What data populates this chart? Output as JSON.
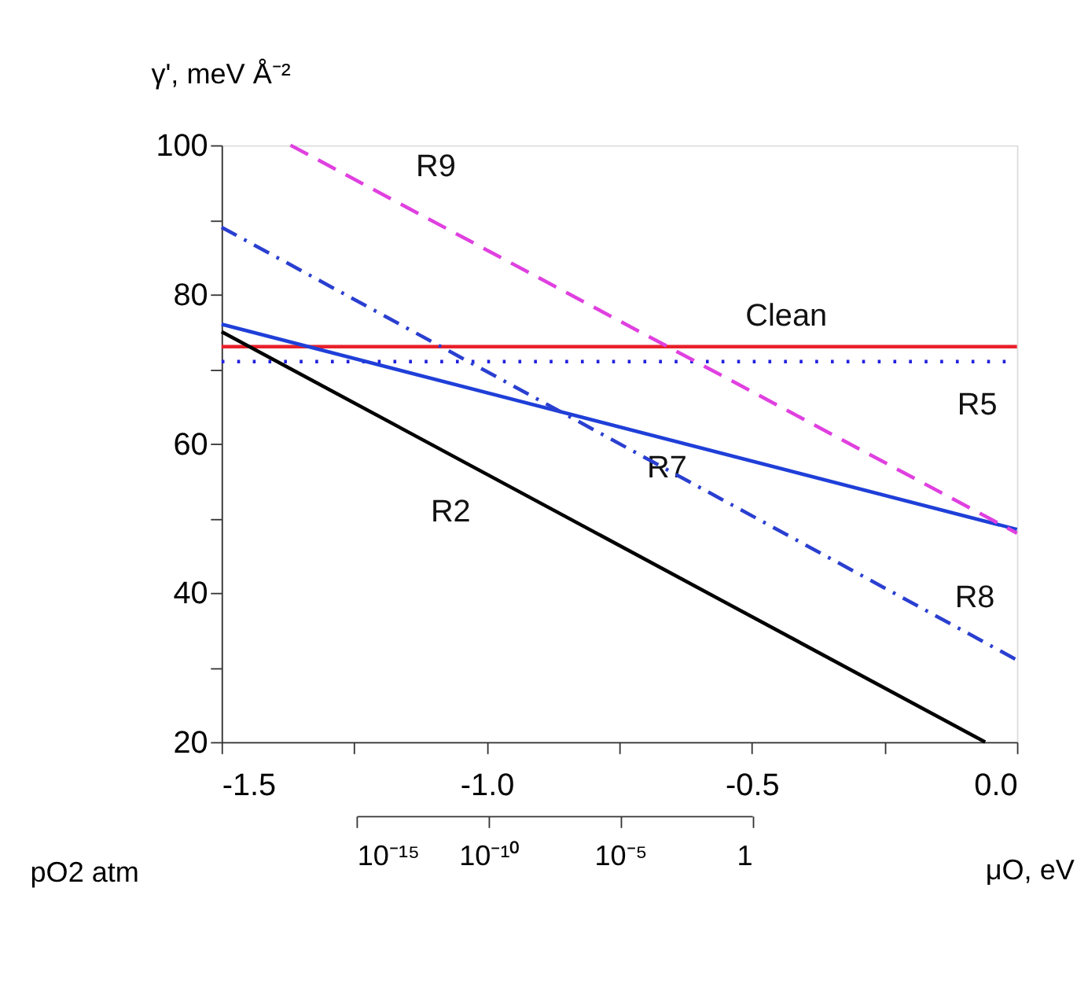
{
  "chart_data": {
    "type": "line",
    "xlabel": "μO, eV",
    "ylabel": "γ', meV Å⁻²",
    "x2label": "pO2 atm",
    "xlim": [
      -1.5,
      0
    ],
    "xticks": [
      {
        "value": -1.5,
        "label": "-1.5"
      },
      {
        "value": -1.25,
        "label": null
      },
      {
        "value": -1,
        "label": "-1.0"
      },
      {
        "value": -0.75,
        "label": null
      },
      {
        "value": -0.5,
        "label": "-0.5"
      },
      {
        "value": -0.25,
        "label": null
      },
      {
        "value": 0,
        "label": "0.0"
      }
    ],
    "ylim": [
      20,
      100
    ],
    "yticks": [
      20,
      {
        "value": 30,
        "label": null
      },
      40,
      {
        "value": 50,
        "label": null
      },
      60,
      {
        "value": 70,
        "label": null
      },
      80,
      {
        "value": 90,
        "label": null
      },
      100
    ],
    "log": "x2",
    "x2lim": [
      1e-15,
      1
    ],
    "x2ticks": [
      {
        "value": 1e-15,
        "label": "10⁻¹⁵"
      },
      {
        "value": 1e-10,
        "label": "10⁻¹⁰"
      },
      {
        "value": 1e-05,
        "label": "10⁻⁵"
      },
      1
    ],
    "grid": false,
    "marker": "none",
    "series": [
      {
        "name": "Clean",
        "color": "#e8202a",
        "line_style": "solid",
        "x": [
          -1.5,
          0
        ],
        "values": [
          73,
          73
        ]
      },
      {
        "name": "R5",
        "color": "#2222dd",
        "line_style": "dotted",
        "x": [
          -1.5,
          0
        ],
        "values": [
          71,
          71
        ]
      },
      {
        "name": "R7",
        "color": "#1f3fd8",
        "line_style": "solid",
        "x": [
          -1.5,
          0
        ],
        "values": [
          76,
          48.5
        ]
      },
      {
        "name": "R2",
        "color": "#000000",
        "line_style": "solid",
        "x": [
          -1.5,
          -0.06
        ],
        "values": [
          75,
          20
        ]
      },
      {
        "name": "R8",
        "color": "#2a3fd0",
        "line_style": "dashdot",
        "x": [
          -1.5,
          0
        ],
        "values": [
          89,
          31
        ]
      },
      {
        "name": "R9",
        "color": "#e040e0",
        "line_style": "dashed",
        "x": [
          -1.37,
          0
        ],
        "values": [
          100,
          48
        ]
      }
    ]
  }
}
